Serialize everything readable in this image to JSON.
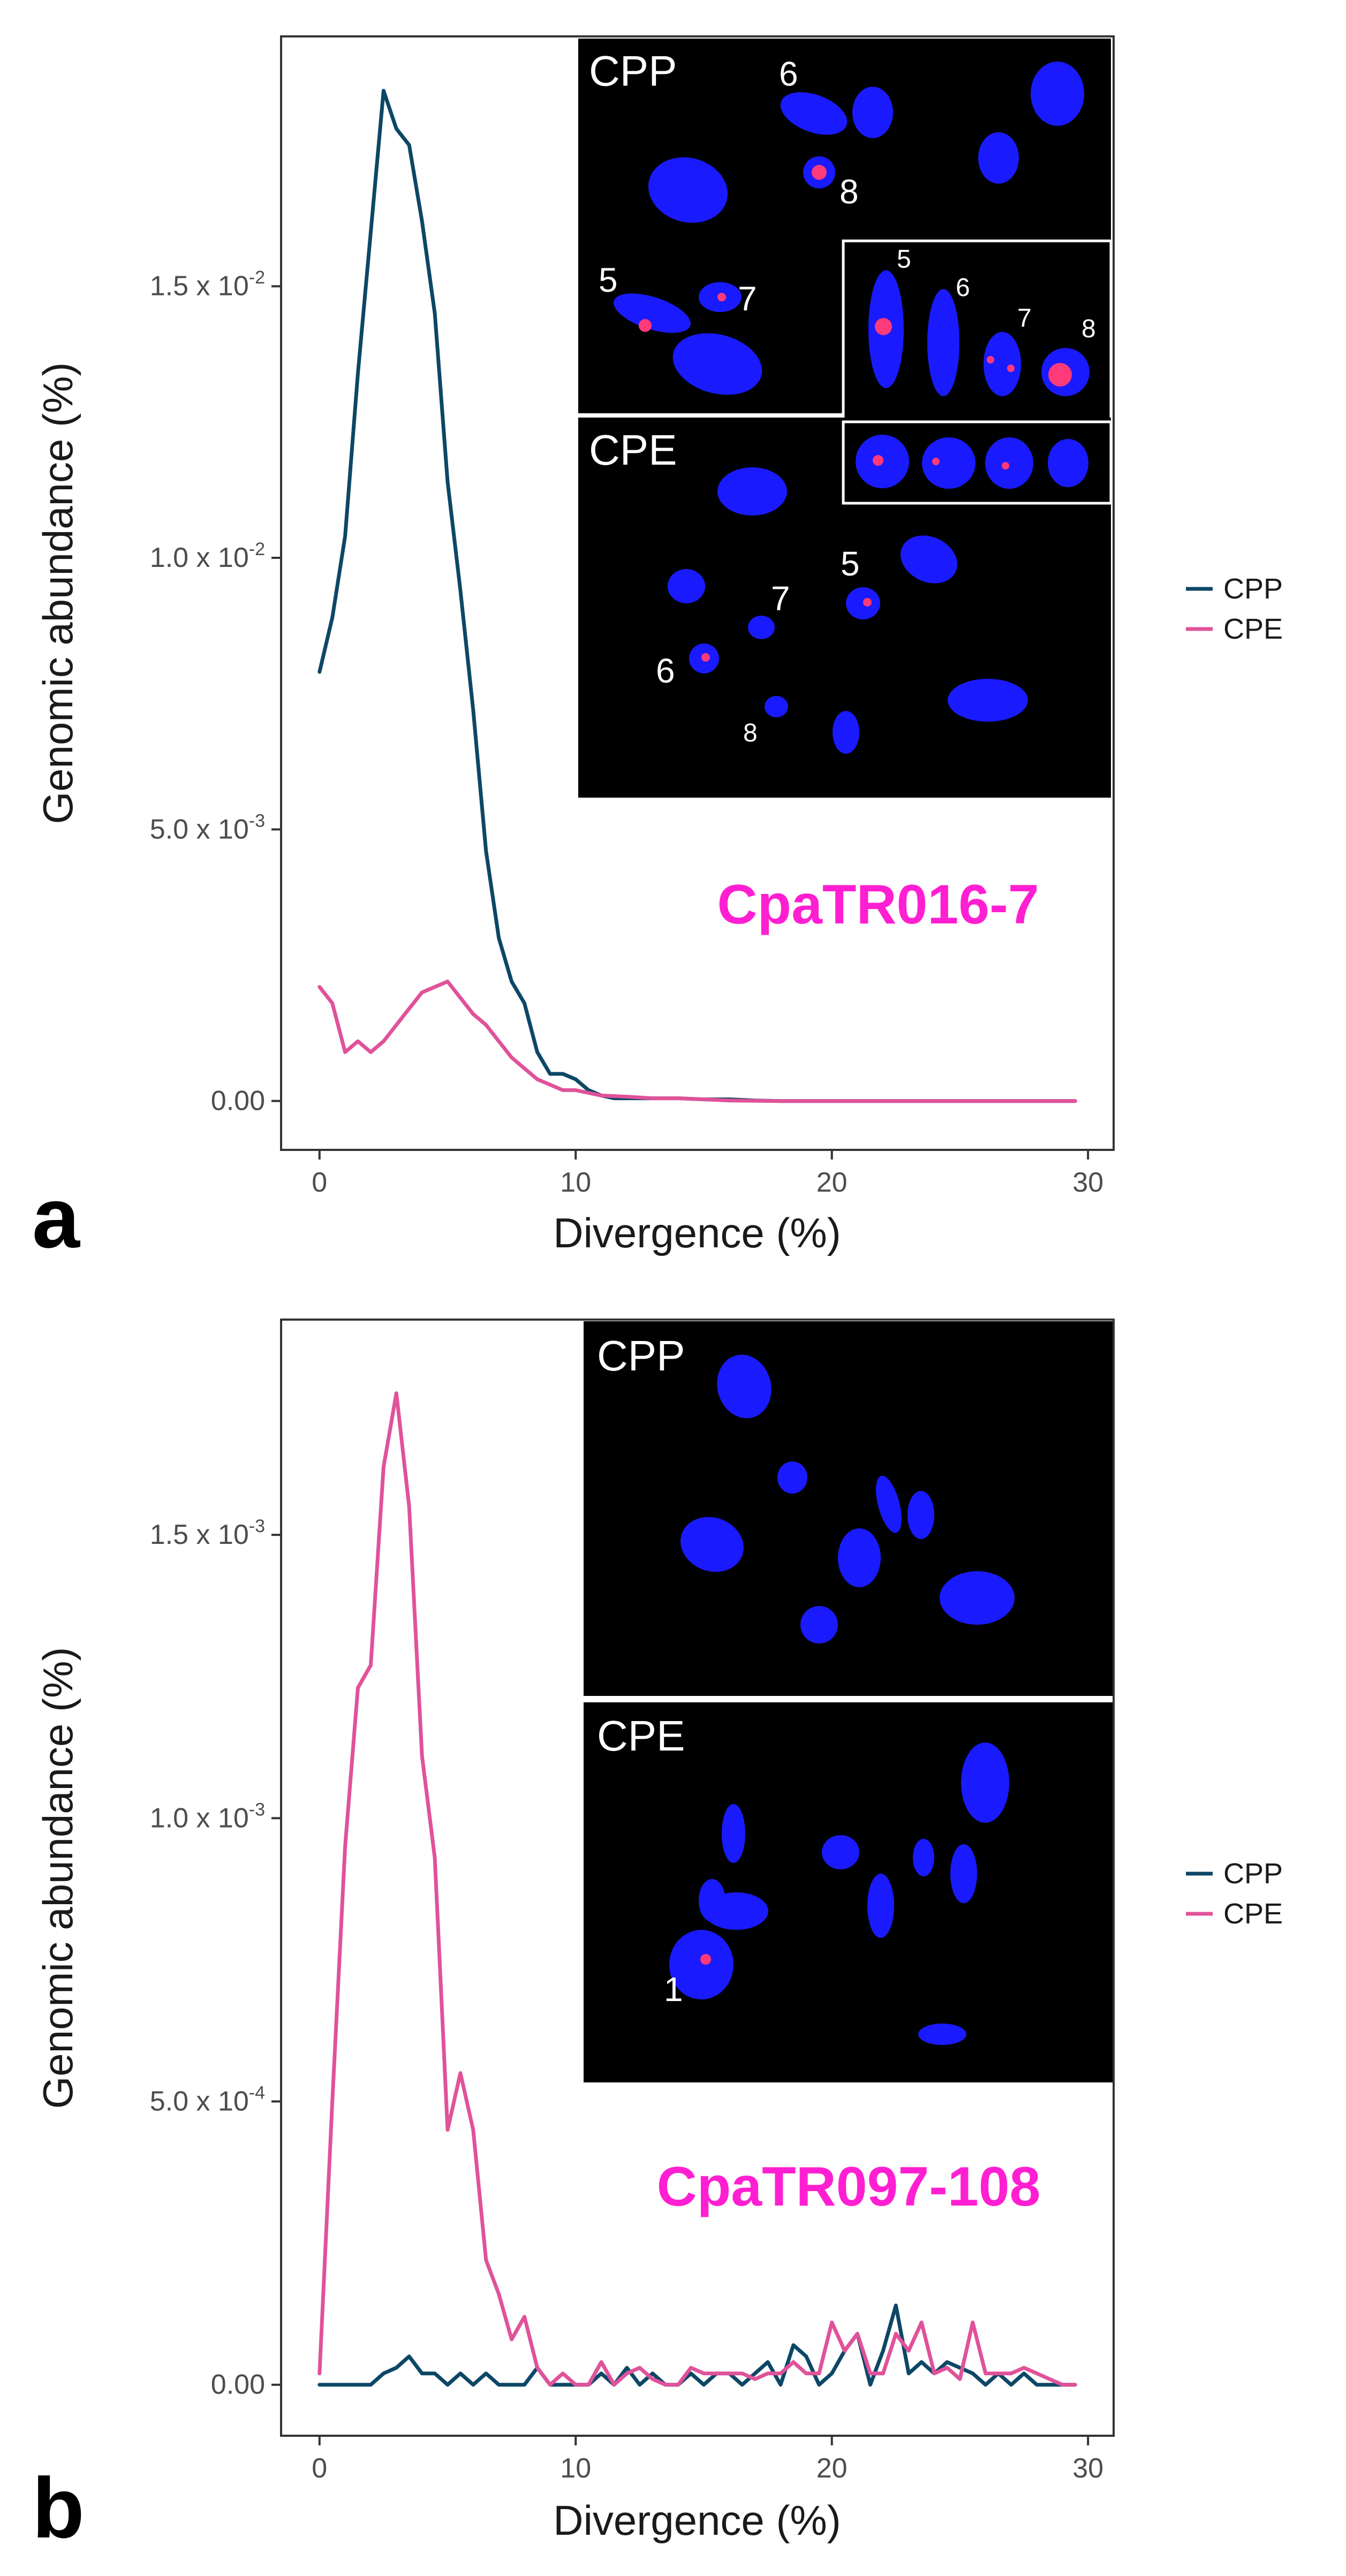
{
  "colors": {
    "cpp": "#0d4766",
    "cpe": "#e0529a",
    "probe": "#ff1fd2",
    "chromosome": "#1a1aff",
    "signal": "#ff3a7a"
  },
  "legend": {
    "cpp": "CPP",
    "cpe": "CPE"
  },
  "chart_data": [
    {
      "panel": "a",
      "type": "line",
      "title": "CpaTR016-7",
      "xlabel": "Divergence (%)",
      "ylabel": "Genomic abundance (%)",
      "xlim": [
        -1.5,
        31
      ],
      "ylim": [
        -0.0009,
        0.0196
      ],
      "x_ticks": [
        "0",
        "10",
        "20",
        "30"
      ],
      "y_ticks": [
        {
          "value": 0,
          "mant": "0.00",
          "exp": ""
        },
        {
          "value": 0.005,
          "mant": "5.0 x 10",
          "exp": "-3"
        },
        {
          "value": 0.01,
          "mant": "1.0 x 10",
          "exp": "-2"
        },
        {
          "value": 0.015,
          "mant": "1.5 x 10",
          "exp": "-2"
        }
      ],
      "series": [
        {
          "name": "CPP",
          "x": [
            0,
            0.5,
            1,
            1.5,
            2,
            2.5,
            3,
            3.5,
            4,
            4.5,
            5,
            5.5,
            6,
            6.5,
            7,
            7.5,
            8,
            8.5,
            9,
            9.5,
            10,
            10.5,
            11,
            11.5,
            12,
            13,
            14,
            15,
            16,
            17,
            18,
            20,
            22,
            25,
            29.5
          ],
          "values": [
            0.0079,
            0.0089,
            0.0104,
            0.0134,
            0.016,
            0.0186,
            0.0179,
            0.0176,
            0.0162,
            0.0145,
            0.0114,
            0.0094,
            0.0072,
            0.0046,
            0.003,
            0.0022,
            0.0018,
            0.0009,
            0.0005,
            0.0005,
            0.0004,
            0.0002,
            0.0001,
            5e-05,
            5e-05,
            5e-05,
            5e-05,
            3e-05,
            3e-05,
            1e-05,
            0,
            0,
            0,
            0,
            0
          ]
        },
        {
          "name": "CPE",
          "x": [
            0,
            0.5,
            1,
            1.5,
            2,
            2.5,
            3,
            3.5,
            4,
            4.5,
            5,
            5.5,
            6,
            6.5,
            7,
            7.5,
            8,
            8.5,
            9,
            9.5,
            10,
            11,
            12,
            13,
            14,
            15,
            16,
            18,
            20,
            25,
            29.5
          ],
          "values": [
            0.0021,
            0.0018,
            0.0009,
            0.0011,
            0.0009,
            0.0011,
            0.0014,
            0.0017,
            0.002,
            0.0021,
            0.0022,
            0.0019,
            0.0016,
            0.0014,
            0.0011,
            0.0008,
            0.0006,
            0.0004,
            0.0003,
            0.0002,
            0.0002,
            0.0001,
            8e-05,
            5e-05,
            5e-05,
            3e-05,
            1e-05,
            0,
            0,
            0,
            0
          ]
        }
      ]
    },
    {
      "panel": "b",
      "type": "line",
      "title": "CpaTR097-108",
      "xlabel": "Divergence (%)",
      "ylabel": "Genomic abundance (%)",
      "xlim": [
        -1.5,
        31
      ],
      "ylim": [
        -9e-05,
        0.00188
      ],
      "x_ticks": [
        "0",
        "10",
        "20",
        "30"
      ],
      "y_ticks": [
        {
          "value": 0,
          "mant": "0.00",
          "exp": ""
        },
        {
          "value": 0.0005,
          "mant": "5.0 x 10",
          "exp": "-4"
        },
        {
          "value": 0.001,
          "mant": "1.0 x 10",
          "exp": "-3"
        },
        {
          "value": 0.0015,
          "mant": "1.5 x 10",
          "exp": "-3"
        }
      ],
      "series": [
        {
          "name": "CPP",
          "x": [
            0,
            0.5,
            1,
            1.5,
            2,
            2.5,
            3,
            3.5,
            4,
            4.5,
            5,
            5.5,
            6,
            6.5,
            7,
            7.5,
            8,
            8.5,
            9,
            9.5,
            10,
            10.5,
            11,
            11.5,
            12,
            12.5,
            13,
            13.5,
            14,
            14.5,
            15,
            15.5,
            16,
            16.5,
            17,
            17.5,
            18,
            18.5,
            19,
            19.5,
            20,
            20.5,
            21,
            21.5,
            22,
            22.5,
            23,
            23.5,
            24,
            24.5,
            25,
            25.5,
            26,
            26.5,
            27,
            27.5,
            28,
            28.5,
            29,
            29.5
          ],
          "values": [
            0,
            0,
            0,
            0,
            0,
            2e-05,
            3e-05,
            5e-05,
            2e-05,
            2e-05,
            0,
            2e-05,
            0,
            2e-05,
            0,
            0,
            0,
            3e-05,
            0,
            0,
            0,
            0,
            2e-05,
            0,
            3e-05,
            0,
            2e-05,
            0,
            0,
            2e-05,
            0,
            2e-05,
            2e-05,
            0,
            2e-05,
            4e-05,
            0,
            7e-05,
            5e-05,
            0,
            2e-05,
            6e-05,
            9e-05,
            0,
            6e-05,
            0.00014,
            2e-05,
            4e-05,
            2e-05,
            4e-05,
            3e-05,
            2e-05,
            0,
            2e-05,
            0,
            2e-05,
            0,
            0,
            0,
            0
          ]
        },
        {
          "name": "CPE",
          "x": [
            0,
            0.5,
            1,
            1.5,
            2,
            2.5,
            3,
            3.5,
            4,
            4.5,
            5,
            5.5,
            6,
            6.5,
            7,
            7.5,
            8,
            8.5,
            9,
            9.5,
            10,
            10.5,
            11,
            11.5,
            12,
            12.5,
            13,
            13.5,
            14,
            14.5,
            15,
            15.5,
            16,
            16.5,
            17,
            17.5,
            18,
            18.5,
            19,
            19.5,
            20,
            20.5,
            21,
            21.5,
            22,
            22.5,
            23,
            23.5,
            24,
            24.5,
            25,
            25.5,
            26,
            26.5,
            27,
            27.5,
            28,
            28.5,
            29,
            29.5
          ],
          "values": [
            2e-05,
            0.0005,
            0.00095,
            0.00123,
            0.00127,
            0.00162,
            0.00175,
            0.00155,
            0.00111,
            0.00093,
            0.00045,
            0.00055,
            0.00045,
            0.00022,
            0.00016,
            8e-05,
            0.00012,
            3e-05,
            0,
            2e-05,
            0,
            0,
            4e-05,
            0,
            2e-05,
            3e-05,
            1e-05,
            0,
            0,
            3e-05,
            2e-05,
            2e-05,
            2e-05,
            2e-05,
            1e-05,
            2e-05,
            2e-05,
            4e-05,
            2e-05,
            2e-05,
            0.00011,
            6e-05,
            9e-05,
            2e-05,
            2e-05,
            9e-05,
            6e-05,
            0.00011,
            2e-05,
            3e-05,
            1e-05,
            0.00011,
            2e-05,
            2e-05,
            2e-05,
            3e-05,
            2e-05,
            1e-05,
            0,
            0
          ]
        }
      ]
    }
  ],
  "panel_a": {
    "letter": "a",
    "inset_cpp_label": "CPP",
    "inset_cpe_label": "CPE",
    "cpp_chromosomes": [
      "6",
      "8",
      "5",
      "7"
    ],
    "zoom_top": [
      "5",
      "6",
      "7",
      "8"
    ],
    "cpe_chromosomes": [
      "7",
      "5",
      "6",
      "8"
    ]
  },
  "panel_b": {
    "letter": "b",
    "inset_cpp_label": "CPP",
    "inset_cpe_label": "CPE",
    "cpe_chromosomes": [
      "1"
    ]
  }
}
